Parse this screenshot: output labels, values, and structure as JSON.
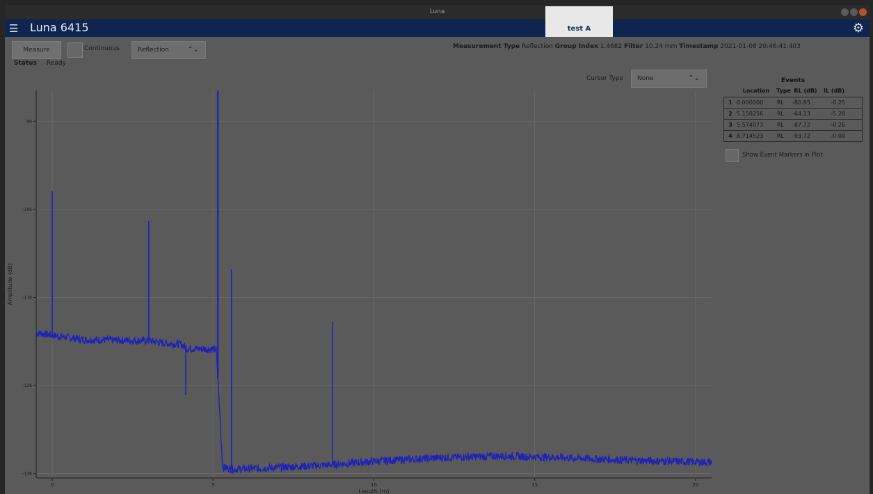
{
  "window": {
    "title": "Luna"
  },
  "app": {
    "title": "Luna 6415",
    "tab": "test A"
  },
  "toolbar": {
    "measure_label": "Measure",
    "continuous_label": "Continuous",
    "mode_value": "Reflection",
    "status_label": "Status",
    "status_value": "Ready"
  },
  "info": {
    "measurement_type_label": "Measurement Type",
    "measurement_type_value": "Reflection",
    "group_index_label": "Group Index",
    "group_index_value": "1.4682",
    "filter_label": "Filter",
    "filter_value": "10.24 mm",
    "timestamp_label": "Timestamp",
    "timestamp_value": "2021-01-06 20:46:41.403"
  },
  "cursor": {
    "label": "Cursor Type",
    "value": "None"
  },
  "events": {
    "title": "Events",
    "headers": [
      "Location",
      "Type",
      "RL (dB)",
      "IL (dB)"
    ],
    "rows": [
      {
        "n": "1",
        "location": "0.000000",
        "type": "RL",
        "rl": "-80.85",
        "il": "-0.25"
      },
      {
        "n": "2",
        "location": "5.150256",
        "type": "RL",
        "rl": "-64.13",
        "il": "-5.28"
      },
      {
        "n": "3",
        "location": "5.574073",
        "type": "RL",
        "rl": "-87.72",
        "il": "-0.26"
      },
      {
        "n": "4",
        "location": "8.714523",
        "type": "RL",
        "rl": "-93.72",
        "il": "-0.00"
      }
    ],
    "show_markers_label": "Show Event Markers in Plot"
  },
  "colors": {
    "trace": "#1e22b8",
    "appbar": "#0f2550",
    "background": "#5a5a5a"
  },
  "chart_data": {
    "type": "line",
    "xlabel": "Length (m)",
    "ylabel": "Amplitude (dB)",
    "xlim": [
      -0.5,
      20.5
    ],
    "ylim": [
      -136.5,
      -92.5
    ],
    "x_ticks": [
      0,
      5,
      10,
      15,
      20
    ],
    "y_ticks": [
      -96,
      -106,
      -116,
      -126,
      -136
    ],
    "grid": true,
    "baseline": [
      {
        "x": -0.5,
        "y": -120.0
      },
      {
        "x": 0.0,
        "y": -120.3
      },
      {
        "x": 1.0,
        "y": -120.8
      },
      {
        "x": 3.0,
        "y": -120.9
      },
      {
        "x": 3.5,
        "y": -121.2
      },
      {
        "x": 4.0,
        "y": -121.3
      },
      {
        "x": 4.2,
        "y": -121.8
      },
      {
        "x": 5.1,
        "y": -121.9
      },
      {
        "x": 5.3,
        "y": -135.3
      },
      {
        "x": 5.6,
        "y": -135.5
      },
      {
        "x": 6.5,
        "y": -135.4
      },
      {
        "x": 8.7,
        "y": -135.0
      },
      {
        "x": 10.0,
        "y": -134.6
      },
      {
        "x": 12.0,
        "y": -134.2
      },
      {
        "x": 14.0,
        "y": -134.0
      },
      {
        "x": 16.0,
        "y": -134.2
      },
      {
        "x": 18.0,
        "y": -134.5
      },
      {
        "x": 20.5,
        "y": -134.7
      }
    ],
    "spikes": [
      {
        "x": 0.0,
        "peak": -103.9
      },
      {
        "x": 3.0,
        "peak": -107.3
      },
      {
        "x": 4.15,
        "peak": -127.1,
        "dip": true
      },
      {
        "x": 5.15,
        "peak": -92.5
      },
      {
        "x": 5.57,
        "peak": -112.8
      },
      {
        "x": 8.71,
        "peak": -118.8
      }
    ]
  }
}
